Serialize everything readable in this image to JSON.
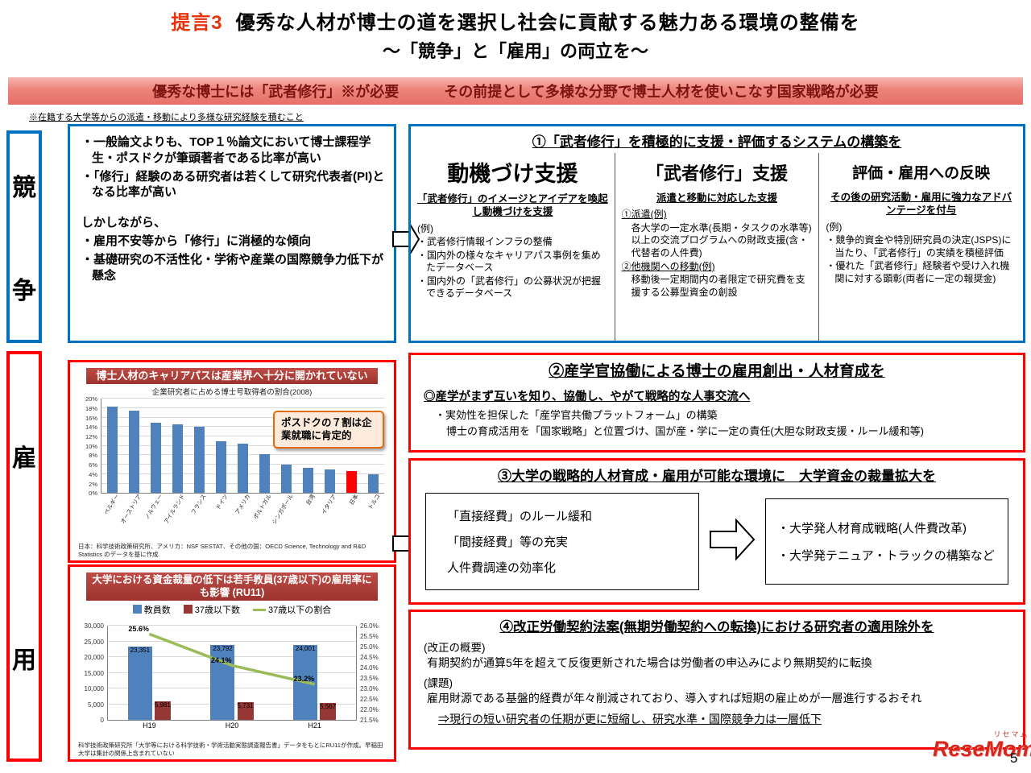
{
  "page": {
    "number": "5"
  },
  "title": {
    "tag": "提言3",
    "main": "優秀な人材が博士の道を選択し社会に貢献する魅力ある環境の整備を",
    "sub": "～「競争」と「雇用」の両立を～"
  },
  "banner": {
    "left": "優秀な博士には「武者修行」※が必要",
    "right": "その前提として多様な分野で博士人材を使いこなす国家戦略が必要"
  },
  "footnote": "※在籍する大学等からの派遣・移動により多様な研究経験を積むこと",
  "sidebar": {
    "competition": "競争",
    "employment": "雇用"
  },
  "competition_box": {
    "bullet1": "・一般論文よりも、TOP１％論文において博士課程学生・ポスドクが筆頭著者である比率が高い",
    "bullet2": "・「修行」経験のある研究者は若くして研究代表者(PI)となる比率が高い",
    "however": "しかしながら、",
    "bullet3": "・雇用不安等から「修行」に消極的な傾向",
    "bullet4": "・基礎研究の不活性化・学術や産業の国際競争力低下が懸念"
  },
  "box1": {
    "title": "①「武者修行」を積極的に支援・評価するシステムの構築を",
    "columns": [
      {
        "heading": "動機づけ支援",
        "subheading": "「武者修行」のイメージとアイデアを喚起し動機づけを支援",
        "body": [
          "(例)",
          "・武者修行情報インフラの整備",
          "・国内外の様々なキャリアパス事例を集めたデータベース",
          "・国内外の「武者修行」の公募状況が把握できるデータベース"
        ]
      },
      {
        "heading": "「武者修行」支援",
        "subheading": "派遣と移動に対応した支援",
        "body": [
          "①派遣(例)",
          "各大学の一定水準(長期・タスクの水準等)以上の交流プログラムへの財政支援(含・代替者の人件費)",
          "②他機関への移動(例)",
          "移動後一定期間内の者限定で研究費を支援する公募型資金の創設"
        ]
      },
      {
        "heading": "評価・雇用への反映",
        "subheading": "その後の研究活動・雇用に強力なアドバンテージを付与",
        "body": [
          "(例)",
          "・競争的資金や特別研究員の決定(JSPS)に当たり、「武者修行」の実績を積極評価",
          "・優れた「武者修行」経験者や受け入れ機関に対する顕彰(両者に一定の報奨金)"
        ]
      }
    ]
  },
  "chart1_box": {
    "header": "博士人材のキャリアパスは産業界へ十分に開かれていない",
    "callout": "ポスドクの７割は企業就職に肯定的",
    "note": "日本：科学技術政策研究所、アメリカ：NSF SESTAT、その他の国：OECD Science, Technology and R&D Statistics のデータを基に作成"
  },
  "chart2_box": {
    "header": "大学における資金裁量の低下は若手教員(37歳以下)の雇用率にも影響 (RU11)",
    "note": "科学技術政策研究所「大学等における科学技術・学術活動実態調査報告書」データをもとにRU11が作成。早稲田大学は集計の関係上含まれていない"
  },
  "box2": {
    "title": "②産学官協働による博士の雇用創出・人材育成を",
    "lead": "◎産学がまず互いを知り、協働し、やがて戦略的な人事交流へ",
    "items": [
      "・実効性を担保した「産学官共働プラットフォーム」の構築",
      "博士の育成活用を「国家戦略」と位置づけ、国が産・学に一定の責任(大胆な財政支援・ルール緩和等)"
    ]
  },
  "box3": {
    "title": "③大学の戦略的人材育成・雇用が可能な環境に　大学資金の裁量拡大を",
    "left_items": [
      "「直接経費」のルール緩和",
      "「間接経費」等の充実",
      "人件費調達の効率化"
    ],
    "right_items": [
      "・大学発人材育成戦略(人件費改革)",
      "・大学発テニュア・トラックの構築など"
    ]
  },
  "box4": {
    "title": "④改正労働契約法案(無期労働契約への転換)における研究者の適用除外を",
    "overview_label": "(改正の概要)",
    "overview_text": "有期契約が通算5年を超えて反復更新された場合は労働者の申込みにより無期契約に転換",
    "issue_label": "(課題)",
    "issue_text": "雇用財源である基盤的経費が年々削減されており、導入すれば短期の雇止めが一層進行するおそれ",
    "conclusion": "⇒現行の短い研究者の任期が更に短縮し、研究水準・国際競争力は一層低下"
  },
  "logo": {
    "ruby": "リセマム",
    "text": "ReseMom"
  },
  "chart_data": [
    {
      "type": "bar",
      "title": "企業研究者に占める博士号取得者の割合(2008)",
      "categories": [
        "ベルギー",
        "オーストリア",
        "ノルウェー",
        "アイルランド",
        "フランス",
        "ドイツ",
        "アメリカ",
        "ポルトガル",
        "シンガポール",
        "台湾",
        "イタリア",
        "日本",
        "トルコ"
      ],
      "values": [
        18.3,
        17.5,
        15.0,
        14.5,
        14.0,
        11.0,
        10.5,
        8.2,
        6.0,
        5.3,
        5.0,
        4.6,
        4.0
      ],
      "highlight_index": 11,
      "highlight_category": "日本",
      "bar_color": "#4f81bd",
      "highlight_color": "#ff0000",
      "ylim": [
        0,
        20
      ],
      "ytick": 2,
      "unit": "%",
      "grid": true
    },
    {
      "type": "bar+line",
      "categories": [
        "H19",
        "H20",
        "H21"
      ],
      "series": [
        {
          "name": "教員数",
          "type": "bar",
          "axis": "left",
          "color": "#4f81bd",
          "values": [
            23351,
            23792,
            24001
          ]
        },
        {
          "name": "37歳以下数",
          "type": "bar",
          "axis": "left",
          "color": "#953735",
          "values": [
            5981,
            5731,
            5567
          ]
        },
        {
          "name": "37歳以下の割合",
          "type": "line",
          "axis": "right",
          "color": "#9bbb59",
          "unit": "%",
          "values": [
            25.6,
            24.1,
            23.2
          ]
        }
      ],
      "left_axis": {
        "min": 0,
        "max": 30000,
        "step": 5000
      },
      "right_axis": {
        "min": 21.5,
        "max": 26.0,
        "step": 0.5,
        "unit": "%"
      },
      "grid": true,
      "legend_position": "top"
    }
  ]
}
